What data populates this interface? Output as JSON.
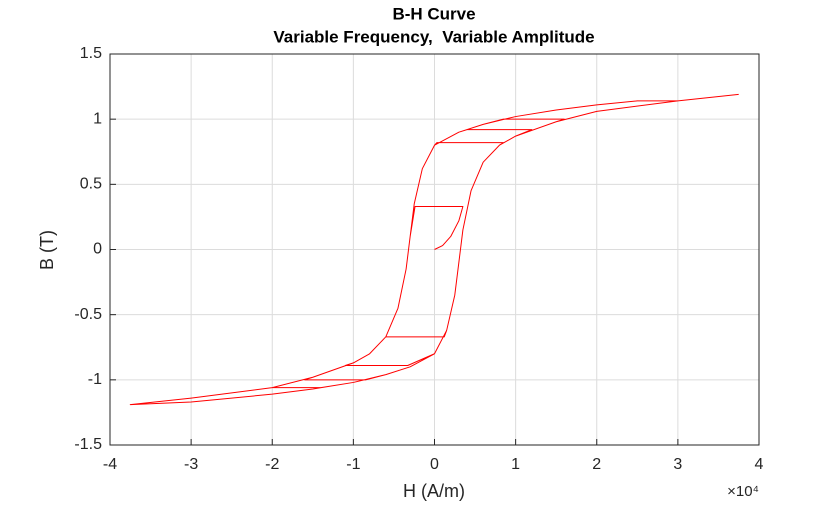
{
  "chart_data": {
    "type": "line",
    "title": "B-H Curve",
    "subtitle": "Variable Frequency,  Variable Amplitude",
    "x_label": "H (A/m)",
    "y_label": "B (T)",
    "x_exponent": "×10⁴",
    "xlim": [
      -4,
      4
    ],
    "ylim": [
      -1.5,
      1.5
    ],
    "xticks": [
      -4,
      -3,
      -2,
      -1,
      0,
      1,
      2,
      3,
      4
    ],
    "yticks": [
      -1.5,
      -1,
      -0.5,
      0,
      0.5,
      1,
      1.5
    ],
    "grid": true,
    "series": [
      {
        "color": "#ff0000",
        "x": [
          0,
          0.1,
          0.2,
          0.3,
          0.35,
          -0.24,
          -0.3,
          -0.35,
          -0.45,
          -0.6,
          0.12,
          0.15,
          0.25,
          0.3,
          0.35,
          0.45,
          0.6,
          0.8,
          0.85,
          0.03,
          0,
          -0.15,
          -0.25,
          -0.3,
          -0.35,
          -0.45,
          -0.6,
          -0.8,
          -1,
          -1.1,
          -0.33,
          0,
          0.15,
          0.25,
          0.3,
          0.35,
          0.45,
          0.6,
          0.8,
          1,
          1.2,
          0.4,
          0.3,
          0,
          -0.15,
          -0.25,
          -0.3,
          -0.35,
          -0.45,
          -0.6,
          -0.8,
          -1,
          -1.5,
          -1.6,
          -0.85,
          -0.6,
          -0.3,
          0,
          0.15,
          0.25,
          0.3,
          0.35,
          0.45,
          0.6,
          0.8,
          1,
          1.5,
          1.6,
          0.85,
          0.6,
          0.3,
          0,
          -0.15,
          -0.25,
          -0.3,
          -0.35,
          -0.45,
          -0.6,
          -0.8,
          -1,
          -1.5,
          -2,
          -1.4,
          -1,
          -0.6,
          -0.3,
          0,
          0.15,
          0.25,
          0.3,
          0.35,
          0.45,
          0.6,
          0.8,
          1,
          1.5,
          2,
          3,
          2.5,
          2,
          1.5,
          1,
          0.6,
          0.3,
          0,
          -0.15,
          -0.25,
          -0.3,
          -0.35,
          -0.45,
          -0.6,
          -0.8,
          -1,
          -1.5,
          -2,
          -3,
          -3.75,
          -3,
          -2,
          -1.5,
          -1,
          -0.6,
          -0.3,
          0,
          0.15,
          0.25,
          0.3,
          0.35,
          0.45,
          0.6,
          0.8,
          1,
          1.5,
          2,
          3,
          3.75
        ],
        "values": [
          0,
          0.03,
          0.1,
          0.22,
          0.33,
          0.33,
          0.1,
          -0.15,
          -0.45,
          -0.67,
          -0.67,
          -0.62,
          -0.35,
          -0.1,
          0.15,
          0.45,
          0.67,
          0.8,
          0.82,
          0.82,
          0.8,
          0.62,
          0.35,
          0.1,
          -0.15,
          -0.45,
          -0.67,
          -0.8,
          -0.87,
          -0.89,
          -0.89,
          -0.8,
          -0.62,
          -0.35,
          -0.1,
          0.15,
          0.45,
          0.67,
          0.8,
          0.87,
          0.92,
          0.92,
          0.9,
          0.8,
          0.62,
          0.35,
          0.1,
          -0.15,
          -0.45,
          -0.67,
          -0.8,
          -0.87,
          -0.98,
          -1.0,
          -1.0,
          -0.96,
          -0.9,
          -0.8,
          -0.62,
          -0.35,
          -0.1,
          0.15,
          0.45,
          0.67,
          0.8,
          0.87,
          0.98,
          1.0,
          1.0,
          0.96,
          0.9,
          0.8,
          0.62,
          0.35,
          0.1,
          -0.15,
          -0.45,
          -0.67,
          -0.8,
          -0.87,
          -0.98,
          -1.06,
          -1.06,
          -1.02,
          -0.96,
          -0.9,
          -0.8,
          -0.62,
          -0.35,
          -0.1,
          0.15,
          0.45,
          0.67,
          0.8,
          0.87,
          0.98,
          1.06,
          1.14,
          1.14,
          1.11,
          1.07,
          1.02,
          0.96,
          0.9,
          0.8,
          0.62,
          0.35,
          0.1,
          -0.15,
          -0.45,
          -0.67,
          -0.8,
          -0.87,
          -0.98,
          -1.06,
          -1.14,
          -1.19,
          -1.17,
          -1.11,
          -1.07,
          -1.02,
          -0.96,
          -0.9,
          -0.8,
          -0.62,
          -0.35,
          -0.1,
          0.15,
          0.45,
          0.67,
          0.8,
          0.87,
          0.98,
          1.06,
          1.14,
          1.19
        ]
      }
    ]
  }
}
